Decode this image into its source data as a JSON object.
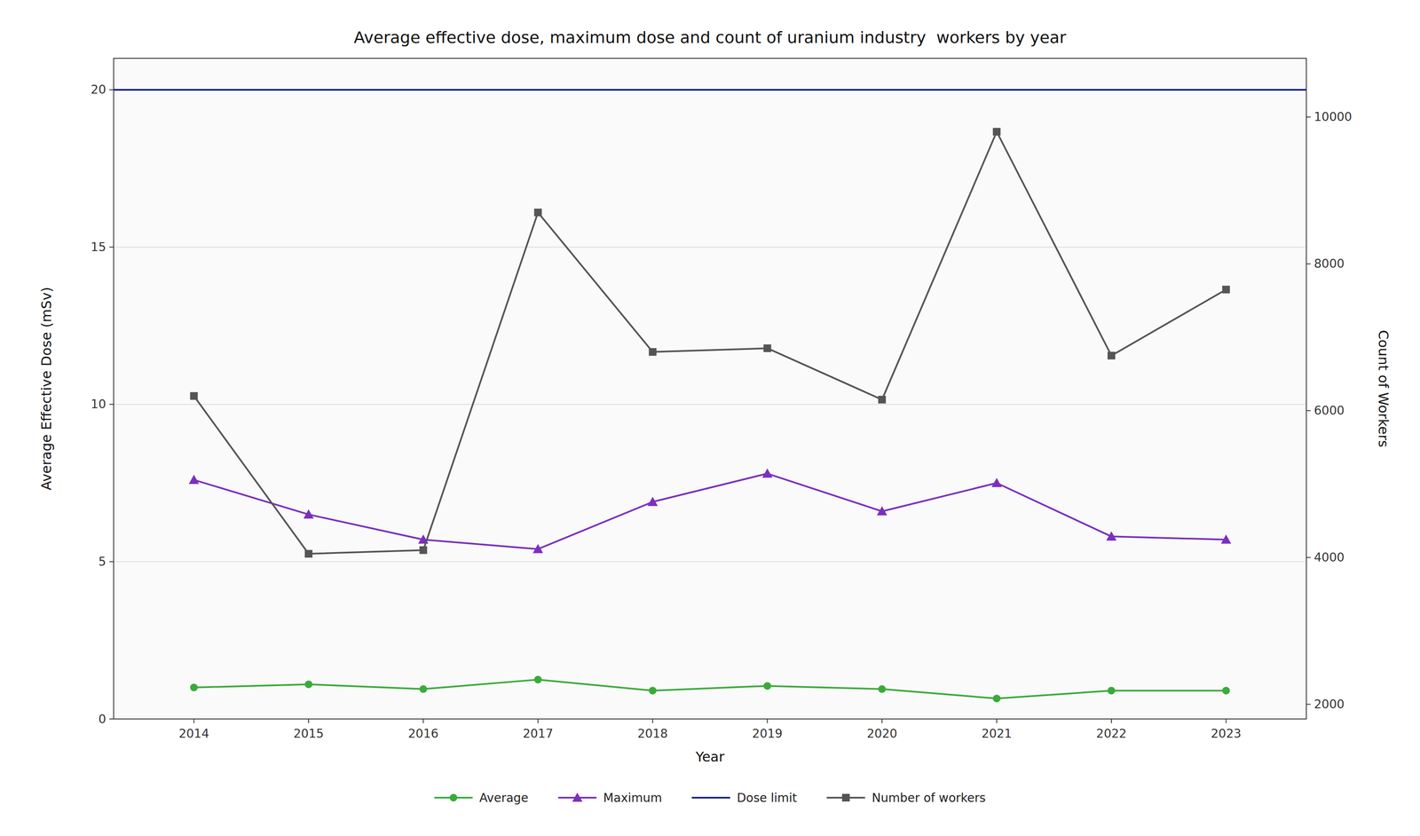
{
  "chart_data": {
    "type": "line",
    "title": "Average effective dose, maximum dose and count of uranium industry  workers by year",
    "xlabel": "Year",
    "ylabel": "Average Effective Dose (mSv)",
    "y2label": "Count of Workers",
    "x": [
      2014,
      2015,
      2016,
      2017,
      2018,
      2019,
      2020,
      2021,
      2022,
      2023
    ],
    "xlim": [
      2013.3,
      2023.7
    ],
    "xticks": [
      2014,
      2015,
      2016,
      2017,
      2018,
      2019,
      2020,
      2021,
      2022,
      2023
    ],
    "ylim": [
      0,
      21
    ],
    "yticks": [
      0,
      5,
      10,
      15,
      20
    ],
    "y2lim": [
      1800,
      10800
    ],
    "y2ticks": [
      2000,
      4000,
      6000,
      8000,
      10000
    ],
    "grid": true,
    "legend": "bottom",
    "series": [
      {
        "name": "Average",
        "color": "#3aab3a",
        "marker": "circle",
        "values": [
          1.0,
          1.1,
          0.95,
          1.25,
          0.9,
          1.05,
          0.95,
          0.65,
          0.9,
          0.9
        ]
      },
      {
        "name": "Maximum",
        "color": "#7b2fbe",
        "marker": "triangle",
        "values": [
          7.6,
          6.5,
          5.7,
          5.4,
          6.9,
          7.8,
          6.6,
          7.5,
          5.8,
          5.7
        ]
      },
      {
        "name": "Dose limit",
        "color": "#1a237e",
        "type": "hline",
        "value": 20
      },
      {
        "name": "Number of workers",
        "color": "#555555",
        "marker": "square",
        "axis": "y2",
        "values": [
          6200,
          4050,
          4100,
          8700,
          6800,
          6850,
          6150,
          9800,
          6750,
          7650
        ]
      }
    ]
  }
}
